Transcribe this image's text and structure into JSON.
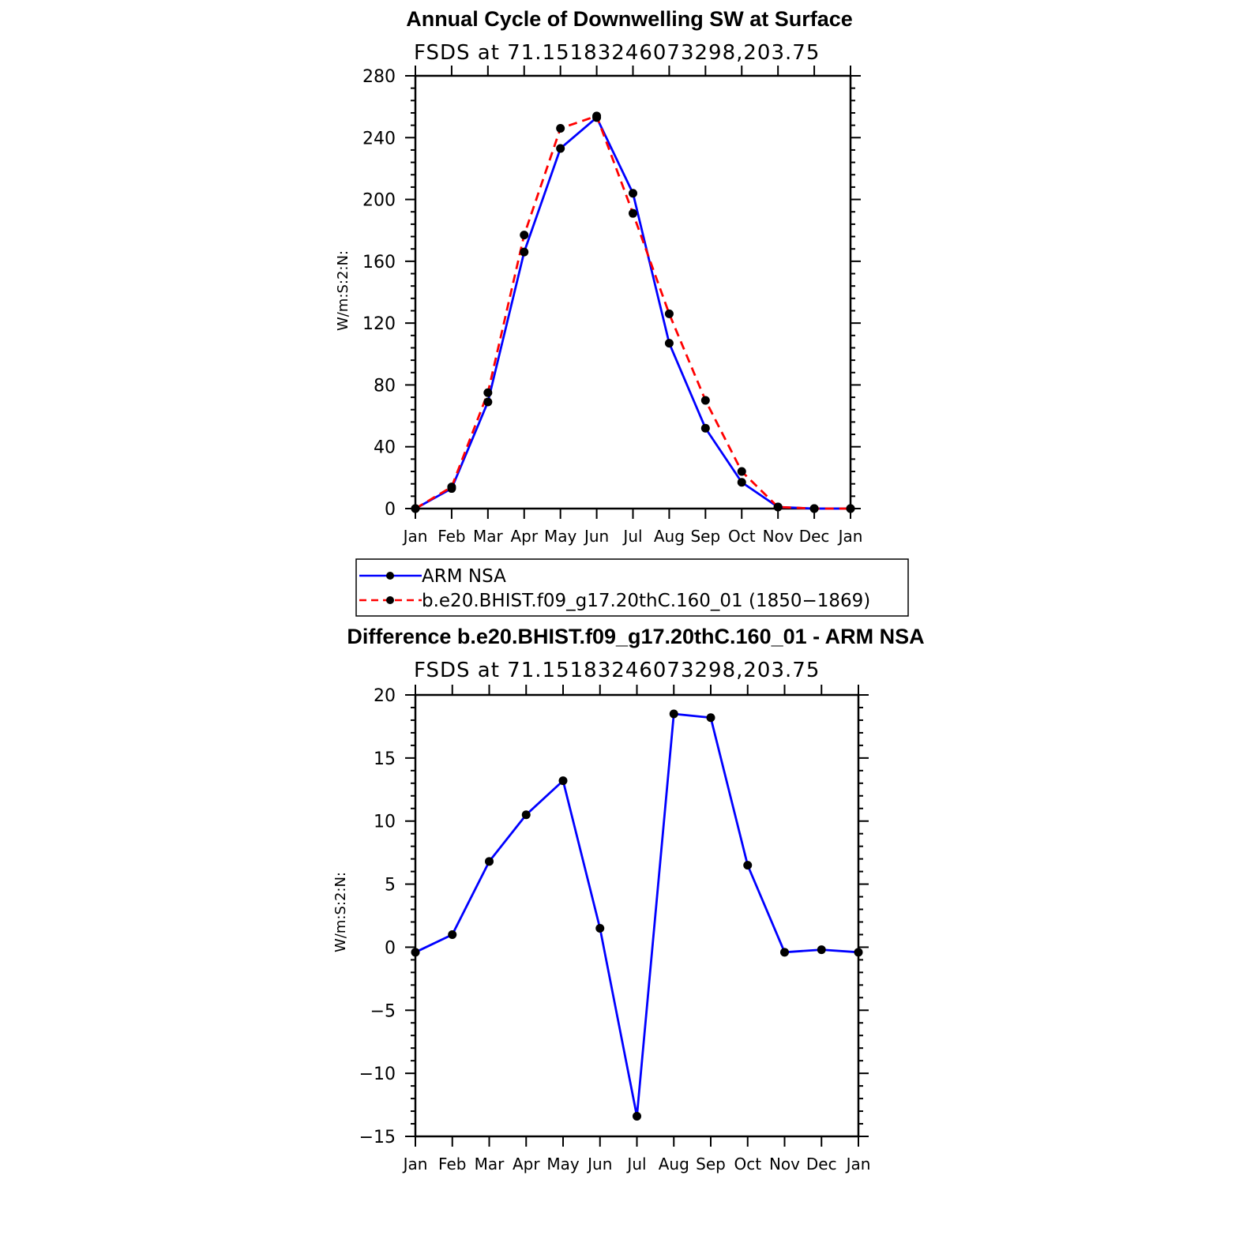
{
  "chart_data": [
    {
      "type": "line",
      "title": "Annual Cycle of Downwelling SW at Surface",
      "subtitle": "FSDS at 71.15183246073298,203.75",
      "ylabel": "W/m:S:2:N:",
      "xlabel": "",
      "categories": [
        "Jan",
        "Feb",
        "Mar",
        "Apr",
        "May",
        "Jun",
        "Jul",
        "Aug",
        "Sep",
        "Oct",
        "Nov",
        "Dec",
        "Jan"
      ],
      "ylim": [
        0,
        280
      ],
      "yticks": [
        0,
        40,
        80,
        120,
        160,
        200,
        240,
        280
      ],
      "series": [
        {
          "name": "ARM NSA",
          "color": "#0000ff",
          "dash": "solid",
          "values": [
            0,
            13,
            69,
            166,
            233,
            253,
            204,
            107,
            52,
            17,
            1,
            0,
            0
          ]
        },
        {
          "name": "b.e20.BHIST.f09_g17.20thC.160_01 (1850−1869)",
          "color": "#ff0000",
          "dash": "dashed",
          "values": [
            0,
            14,
            75,
            177,
            246,
            254,
            191,
            126,
            70,
            24,
            1,
            0,
            0
          ]
        }
      ],
      "legend": {
        "placement": "below"
      }
    },
    {
      "type": "line",
      "title": "Difference b.e20.BHIST.f09_g17.20thC.160_01 - ARM NSA",
      "subtitle": "FSDS at 71.15183246073298,203.75",
      "ylabel": "W/m:S:2:N:",
      "xlabel": "",
      "categories": [
        "Jan",
        "Feb",
        "Mar",
        "Apr",
        "May",
        "Jun",
        "Jul",
        "Aug",
        "Sep",
        "Oct",
        "Nov",
        "Dec",
        "Jan"
      ],
      "ylim": [
        -15,
        20
      ],
      "yticks": [
        -15,
        -10,
        -5,
        0,
        5,
        10,
        15,
        20
      ],
      "ytick_labels": [
        "−15",
        "−10",
        "−5",
        "0",
        "5",
        "10",
        "15",
        "20"
      ],
      "series": [
        {
          "color": "#0000ff",
          "dash": "solid",
          "values": [
            -0.4,
            1.0,
            6.8,
            10.5,
            13.2,
            1.5,
            -13.4,
            18.5,
            18.2,
            6.5,
            -0.4,
            -0.2,
            -0.4
          ]
        }
      ]
    }
  ]
}
